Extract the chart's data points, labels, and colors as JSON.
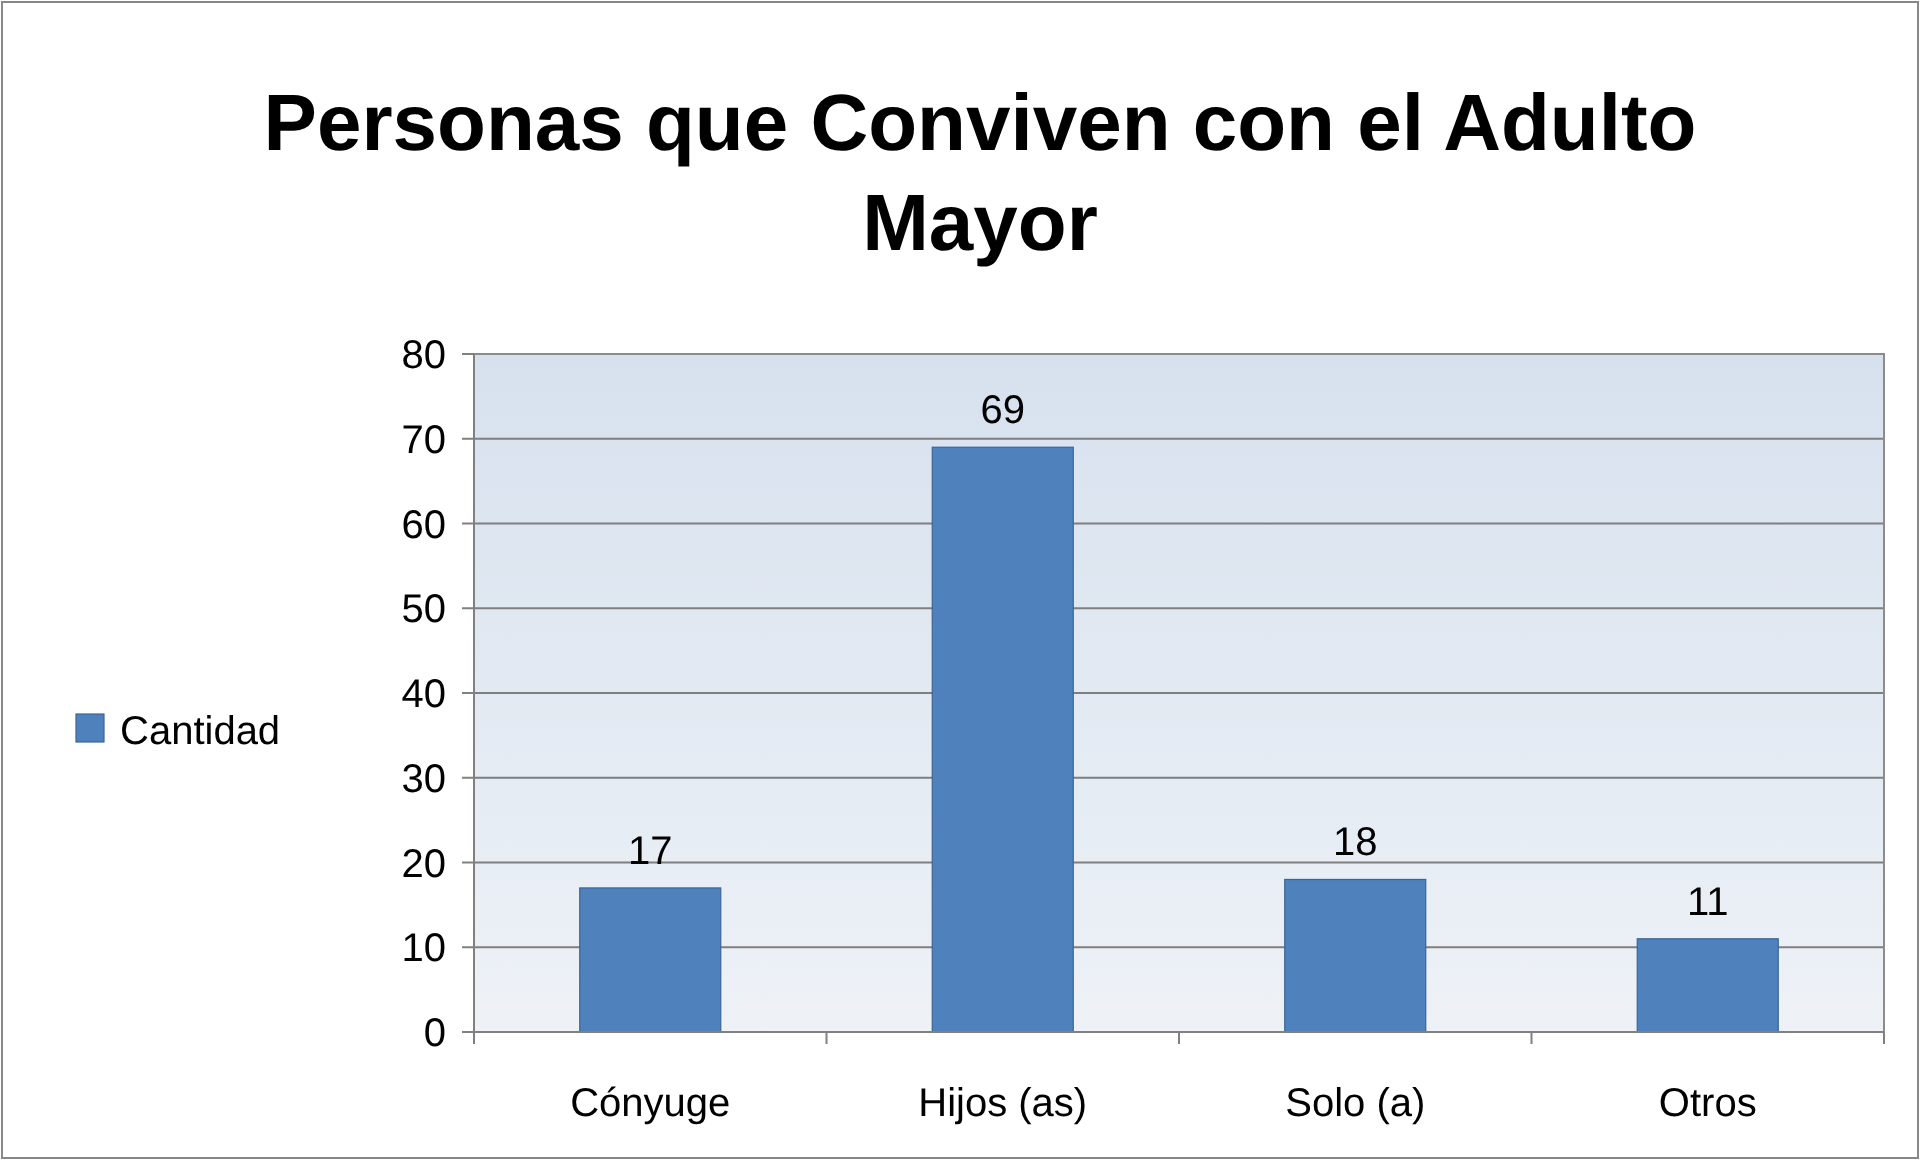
{
  "chart_data": {
    "type": "bar",
    "title": "Personas que Conviven con el Adulto Mayor",
    "categories": [
      "Cónyuge",
      "Hijos (as)",
      "Solo (a)",
      "Otros"
    ],
    "series": [
      {
        "name": "Cantidad",
        "color": "#4f81bd",
        "values": [
          17,
          69,
          18,
          11
        ]
      }
    ],
    "ylim": [
      0,
      80
    ],
    "yticks": [
      0,
      10,
      20,
      30,
      40,
      50,
      60,
      70,
      80
    ],
    "grid": "y",
    "legend": "left",
    "data_labels": true
  }
}
